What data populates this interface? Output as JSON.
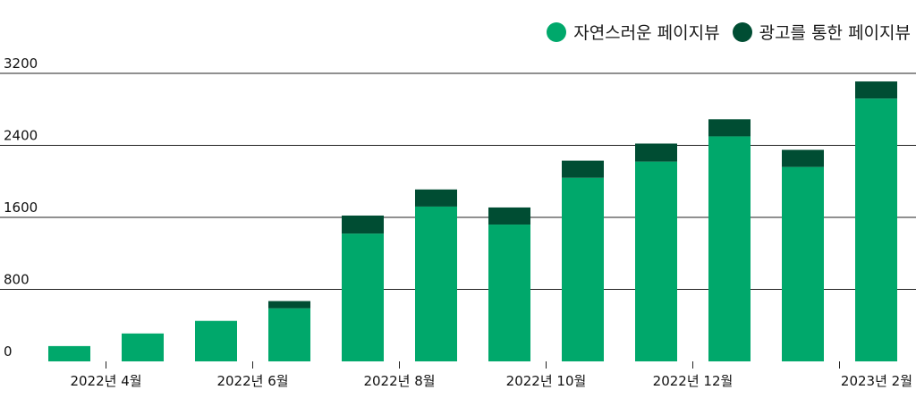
{
  "chart_data": {
    "type": "bar",
    "stacked": true,
    "title": "",
    "xlabel": "",
    "ylabel": "",
    "ylim": [
      0,
      3200
    ],
    "yticks": [
      0,
      800,
      1600,
      2400,
      3200
    ],
    "grid": true,
    "legend_position": "top-right",
    "categories": [
      "2022-03",
      "2022-04",
      "2022-05",
      "2022-06",
      "2022-07",
      "2022-08",
      "2022-09",
      "2022-10",
      "2022-11",
      "2022-12",
      "2023-01",
      "2023-02"
    ],
    "x_tick_labels": [
      {
        "index": 1,
        "label": "2022년 4월"
      },
      {
        "index": 3,
        "label": "2022년 6월"
      },
      {
        "index": 5,
        "label": "2022년 8월"
      },
      {
        "index": 7,
        "label": "2022년 10월"
      },
      {
        "index": 9,
        "label": "2022년 12월"
      },
      {
        "index": 11,
        "label": "2023년 2월"
      }
    ],
    "series": [
      {
        "name": "자연스러운 페이지뷰",
        "color": "#00a86b",
        "values": [
          170,
          310,
          450,
          590,
          1420,
          1720,
          1520,
          2040,
          2220,
          2500,
          2160,
          2920
        ]
      },
      {
        "name": "광고를 통한 페이지뷰",
        "color": "#004d33",
        "values": [
          0,
          0,
          0,
          80,
          200,
          190,
          190,
          190,
          200,
          190,
          190,
          190
        ]
      }
    ]
  }
}
